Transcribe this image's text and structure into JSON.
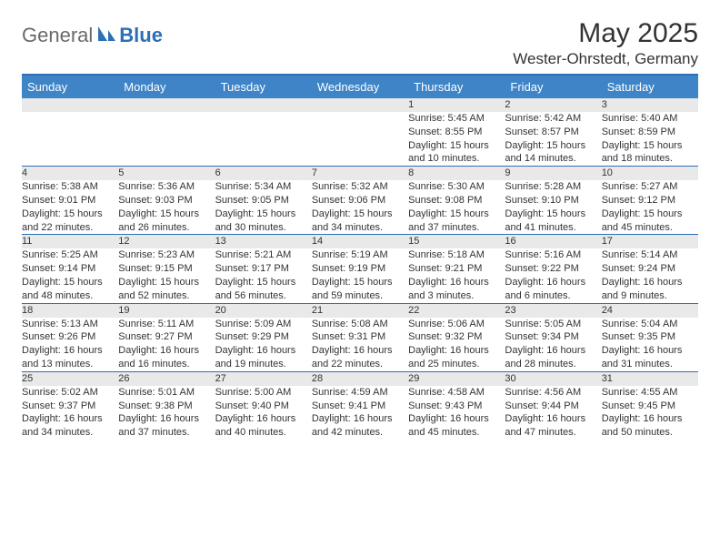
{
  "brand": {
    "part1": "General",
    "part2": "Blue"
  },
  "title": "May 2025",
  "subtitle": "Wester-Ohrstedt, Germany",
  "colors": {
    "header_bg": "#3e84c6",
    "accent": "#2c6fb5",
    "day_bg": "#e9e9e9",
    "text": "#333333",
    "logo_gray": "#6a6a6a"
  },
  "typography": {
    "title_fontsize": 30,
    "subtitle_fontsize": 17,
    "day_header_fontsize": 13,
    "cell_fontsize": 11
  },
  "day_headers": [
    "Sunday",
    "Monday",
    "Tuesday",
    "Wednesday",
    "Thursday",
    "Friday",
    "Saturday"
  ],
  "weeks": [
    [
      {
        "num": "",
        "sunrise": "",
        "sunset": "",
        "daylight": ""
      },
      {
        "num": "",
        "sunrise": "",
        "sunset": "",
        "daylight": ""
      },
      {
        "num": "",
        "sunrise": "",
        "sunset": "",
        "daylight": ""
      },
      {
        "num": "",
        "sunrise": "",
        "sunset": "",
        "daylight": ""
      },
      {
        "num": "1",
        "sunrise": "Sunrise: 5:45 AM",
        "sunset": "Sunset: 8:55 PM",
        "daylight": "Daylight: 15 hours and 10 minutes."
      },
      {
        "num": "2",
        "sunrise": "Sunrise: 5:42 AM",
        "sunset": "Sunset: 8:57 PM",
        "daylight": "Daylight: 15 hours and 14 minutes."
      },
      {
        "num": "3",
        "sunrise": "Sunrise: 5:40 AM",
        "sunset": "Sunset: 8:59 PM",
        "daylight": "Daylight: 15 hours and 18 minutes."
      }
    ],
    [
      {
        "num": "4",
        "sunrise": "Sunrise: 5:38 AM",
        "sunset": "Sunset: 9:01 PM",
        "daylight": "Daylight: 15 hours and 22 minutes."
      },
      {
        "num": "5",
        "sunrise": "Sunrise: 5:36 AM",
        "sunset": "Sunset: 9:03 PM",
        "daylight": "Daylight: 15 hours and 26 minutes."
      },
      {
        "num": "6",
        "sunrise": "Sunrise: 5:34 AM",
        "sunset": "Sunset: 9:05 PM",
        "daylight": "Daylight: 15 hours and 30 minutes."
      },
      {
        "num": "7",
        "sunrise": "Sunrise: 5:32 AM",
        "sunset": "Sunset: 9:06 PM",
        "daylight": "Daylight: 15 hours and 34 minutes."
      },
      {
        "num": "8",
        "sunrise": "Sunrise: 5:30 AM",
        "sunset": "Sunset: 9:08 PM",
        "daylight": "Daylight: 15 hours and 37 minutes."
      },
      {
        "num": "9",
        "sunrise": "Sunrise: 5:28 AM",
        "sunset": "Sunset: 9:10 PM",
        "daylight": "Daylight: 15 hours and 41 minutes."
      },
      {
        "num": "10",
        "sunrise": "Sunrise: 5:27 AM",
        "sunset": "Sunset: 9:12 PM",
        "daylight": "Daylight: 15 hours and 45 minutes."
      }
    ],
    [
      {
        "num": "11",
        "sunrise": "Sunrise: 5:25 AM",
        "sunset": "Sunset: 9:14 PM",
        "daylight": "Daylight: 15 hours and 48 minutes."
      },
      {
        "num": "12",
        "sunrise": "Sunrise: 5:23 AM",
        "sunset": "Sunset: 9:15 PM",
        "daylight": "Daylight: 15 hours and 52 minutes."
      },
      {
        "num": "13",
        "sunrise": "Sunrise: 5:21 AM",
        "sunset": "Sunset: 9:17 PM",
        "daylight": "Daylight: 15 hours and 56 minutes."
      },
      {
        "num": "14",
        "sunrise": "Sunrise: 5:19 AM",
        "sunset": "Sunset: 9:19 PM",
        "daylight": "Daylight: 15 hours and 59 minutes."
      },
      {
        "num": "15",
        "sunrise": "Sunrise: 5:18 AM",
        "sunset": "Sunset: 9:21 PM",
        "daylight": "Daylight: 16 hours and 3 minutes."
      },
      {
        "num": "16",
        "sunrise": "Sunrise: 5:16 AM",
        "sunset": "Sunset: 9:22 PM",
        "daylight": "Daylight: 16 hours and 6 minutes."
      },
      {
        "num": "17",
        "sunrise": "Sunrise: 5:14 AM",
        "sunset": "Sunset: 9:24 PM",
        "daylight": "Daylight: 16 hours and 9 minutes."
      }
    ],
    [
      {
        "num": "18",
        "sunrise": "Sunrise: 5:13 AM",
        "sunset": "Sunset: 9:26 PM",
        "daylight": "Daylight: 16 hours and 13 minutes."
      },
      {
        "num": "19",
        "sunrise": "Sunrise: 5:11 AM",
        "sunset": "Sunset: 9:27 PM",
        "daylight": "Daylight: 16 hours and 16 minutes."
      },
      {
        "num": "20",
        "sunrise": "Sunrise: 5:09 AM",
        "sunset": "Sunset: 9:29 PM",
        "daylight": "Daylight: 16 hours and 19 minutes."
      },
      {
        "num": "21",
        "sunrise": "Sunrise: 5:08 AM",
        "sunset": "Sunset: 9:31 PM",
        "daylight": "Daylight: 16 hours and 22 minutes."
      },
      {
        "num": "22",
        "sunrise": "Sunrise: 5:06 AM",
        "sunset": "Sunset: 9:32 PM",
        "daylight": "Daylight: 16 hours and 25 minutes."
      },
      {
        "num": "23",
        "sunrise": "Sunrise: 5:05 AM",
        "sunset": "Sunset: 9:34 PM",
        "daylight": "Daylight: 16 hours and 28 minutes."
      },
      {
        "num": "24",
        "sunrise": "Sunrise: 5:04 AM",
        "sunset": "Sunset: 9:35 PM",
        "daylight": "Daylight: 16 hours and 31 minutes."
      }
    ],
    [
      {
        "num": "25",
        "sunrise": "Sunrise: 5:02 AM",
        "sunset": "Sunset: 9:37 PM",
        "daylight": "Daylight: 16 hours and 34 minutes."
      },
      {
        "num": "26",
        "sunrise": "Sunrise: 5:01 AM",
        "sunset": "Sunset: 9:38 PM",
        "daylight": "Daylight: 16 hours and 37 minutes."
      },
      {
        "num": "27",
        "sunrise": "Sunrise: 5:00 AM",
        "sunset": "Sunset: 9:40 PM",
        "daylight": "Daylight: 16 hours and 40 minutes."
      },
      {
        "num": "28",
        "sunrise": "Sunrise: 4:59 AM",
        "sunset": "Sunset: 9:41 PM",
        "daylight": "Daylight: 16 hours and 42 minutes."
      },
      {
        "num": "29",
        "sunrise": "Sunrise: 4:58 AM",
        "sunset": "Sunset: 9:43 PM",
        "daylight": "Daylight: 16 hours and 45 minutes."
      },
      {
        "num": "30",
        "sunrise": "Sunrise: 4:56 AM",
        "sunset": "Sunset: 9:44 PM",
        "daylight": "Daylight: 16 hours and 47 minutes."
      },
      {
        "num": "31",
        "sunrise": "Sunrise: 4:55 AM",
        "sunset": "Sunset: 9:45 PM",
        "daylight": "Daylight: 16 hours and 50 minutes."
      }
    ]
  ]
}
